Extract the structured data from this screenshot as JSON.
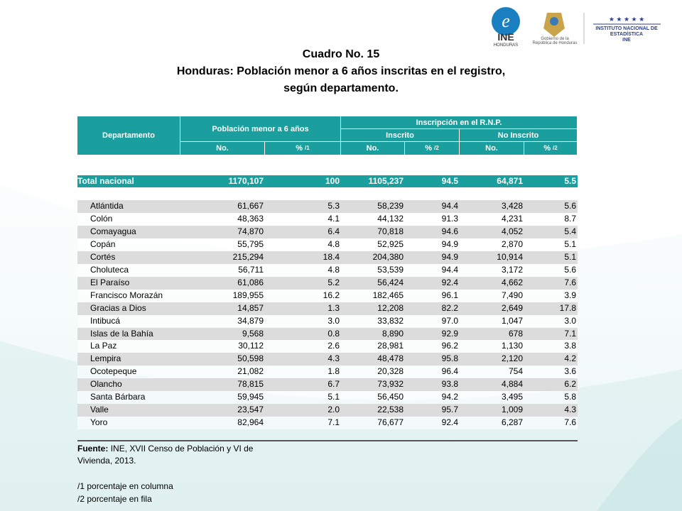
{
  "logos": {
    "ine": "INE",
    "ine_sub": "HONDURAS",
    "gov_line1": "Gobierno de la",
    "gov_line2": "República de Honduras",
    "inst_line1": "INSTITUTO NACIONAL DE",
    "inst_line2": "ESTADÍSTICA",
    "inst_line3": "INE"
  },
  "header": {
    "title": "Cuadro No. 15",
    "subtitle_line1": "Honduras: Población menor a 6 años inscritas en el registro,",
    "subtitle_line2": "según departamento."
  },
  "table": {
    "columns": {
      "departamento": "Departamento",
      "poblacion": "Población menor a 6 años",
      "inscripcion": "Inscripción en el R.N.P.",
      "inscrito": "Inscrito",
      "no_inscrito": "No Inscrito",
      "no": "No.",
      "pct": "%",
      "note1": "/1",
      "note2": "/2"
    },
    "total": [
      "Total nacional",
      "1170,107",
      "100",
      "1105,237",
      "94.5",
      "64,871",
      "5.5"
    ],
    "rows": [
      [
        "Atlántida",
        "61,667",
        "5.3",
        "58,239",
        "94.4",
        "3,428",
        "5.6"
      ],
      [
        "Colón",
        "48,363",
        "4.1",
        "44,132",
        "91.3",
        "4,231",
        "8.7"
      ],
      [
        "Comayagua",
        "74,870",
        "6.4",
        "70,818",
        "94.6",
        "4,052",
        "5.4"
      ],
      [
        "Copán",
        "55,795",
        "4.8",
        "52,925",
        "94.9",
        "2,870",
        "5.1"
      ],
      [
        "Cortés",
        "215,294",
        "18.4",
        "204,380",
        "94.9",
        "10,914",
        "5.1"
      ],
      [
        "Choluteca",
        "56,711",
        "4.8",
        "53,539",
        "94.4",
        "3,172",
        "5.6"
      ],
      [
        "El Paraíso",
        "61,086",
        "5.2",
        "56,424",
        "92.4",
        "4,662",
        "7.6"
      ],
      [
        "Francisco Morazán",
        "189,955",
        "16.2",
        "182,465",
        "96.1",
        "7,490",
        "3.9"
      ],
      [
        "Gracias a Dios",
        "14,857",
        "1.3",
        "12,208",
        "82.2",
        "2,649",
        "17.8"
      ],
      [
        "Intibucá",
        "34,879",
        "3.0",
        "33,832",
        "97.0",
        "1,047",
        "3.0"
      ],
      [
        "Islas de la Bahía",
        "9,568",
        "0.8",
        "8,890",
        "92.9",
        "678",
        "7.1"
      ],
      [
        "La Paz",
        "30,112",
        "2.6",
        "28,981",
        "96.2",
        "1,130",
        "3.8"
      ],
      [
        "Lempira",
        "50,598",
        "4.3",
        "48,478",
        "95.8",
        "2,120",
        "4.2"
      ],
      [
        "Ocotepeque",
        "21,082",
        "1.8",
        "20,328",
        "96.4",
        "754",
        "3.6"
      ],
      [
        "Olancho",
        "78,815",
        "6.7",
        "73,932",
        "93.8",
        "4,884",
        "6.2"
      ],
      [
        "Santa Bárbara",
        "59,945",
        "5.1",
        "56,450",
        "94.2",
        "3,495",
        "5.8"
      ],
      [
        "Valle",
        "23,547",
        "2.0",
        "22,538",
        "95.7",
        "1,009",
        "4.3"
      ],
      [
        "Yoro",
        "82,964",
        "7.1",
        "76,677",
        "92.4",
        "6,287",
        "7.6"
      ]
    ]
  },
  "footer": {
    "source_label": "Fuente:",
    "source_line1": "INE, XVII Censo de Población y VI de",
    "source_line2": "Vivienda, 2013.",
    "note1": "/1 porcentaje en columna",
    "note2": "/2 porcentaje en fila"
  }
}
